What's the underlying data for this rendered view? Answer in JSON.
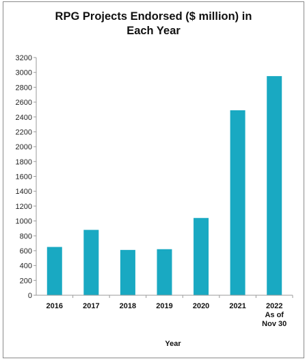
{
  "chart_data": {
    "type": "bar",
    "title_lines": [
      "RPG Projects Endorsed ($ million) in",
      "Each Year"
    ],
    "xlabel": "Year",
    "ylabel": "",
    "categories": [
      [
        "2016"
      ],
      [
        "2017"
      ],
      [
        "2018"
      ],
      [
        "2019"
      ],
      [
        "2020"
      ],
      [
        "2021"
      ],
      [
        "2022",
        "As of",
        "Nov 30"
      ]
    ],
    "values": [
      650,
      880,
      610,
      620,
      1040,
      2490,
      2950
    ],
    "ylim": [
      0,
      3200
    ],
    "ytick_step": 200,
    "grid": false,
    "legend": "none",
    "bar_color": "#19a9c2",
    "axis_color": "#9a9a9a"
  }
}
